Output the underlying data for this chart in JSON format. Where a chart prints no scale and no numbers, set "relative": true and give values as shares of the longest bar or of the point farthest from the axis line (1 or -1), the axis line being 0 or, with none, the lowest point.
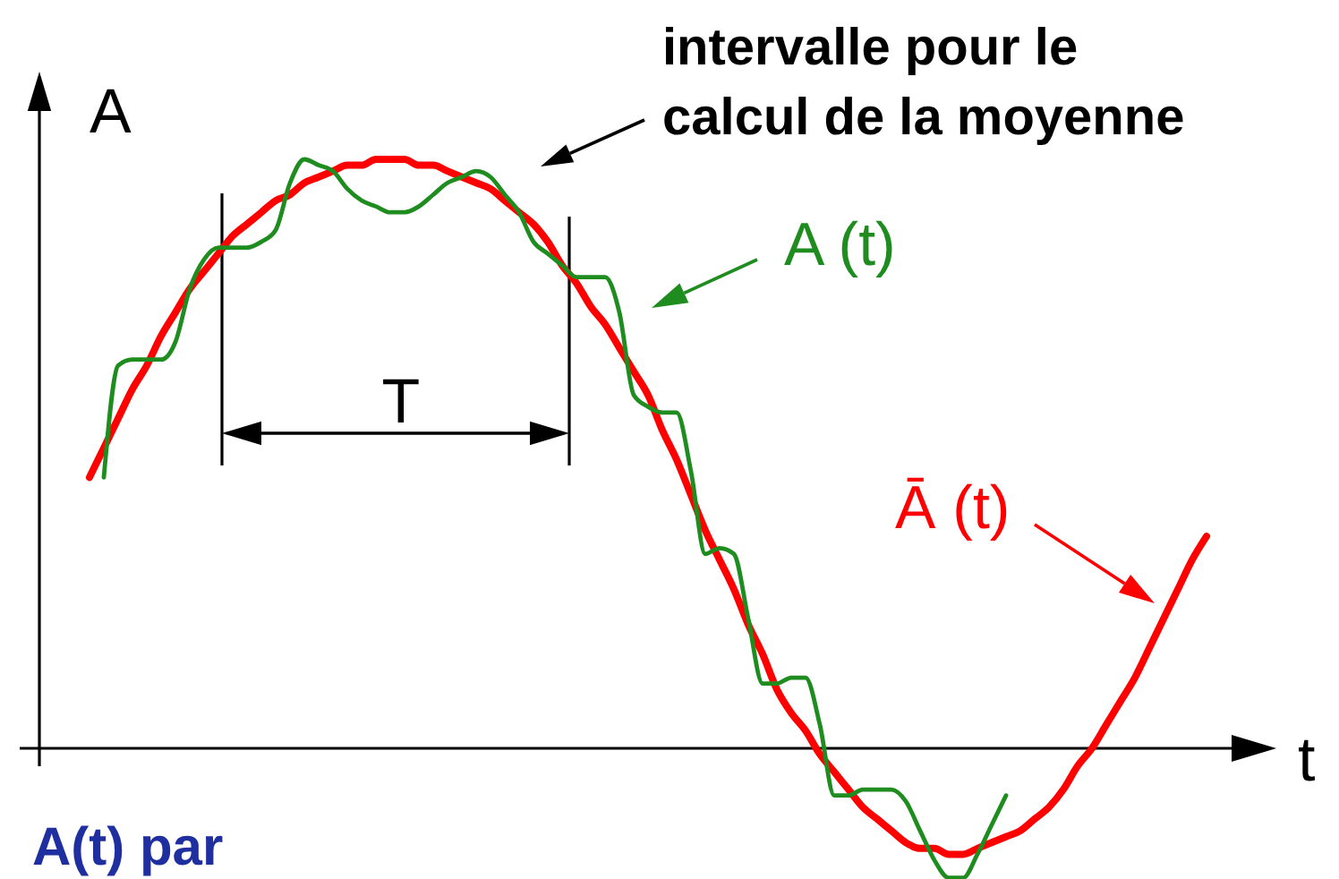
{
  "chart_data": {
    "type": "line",
    "relative": true,
    "xlabel": "t",
    "ylabel": "A",
    "categories": [
      null,
      null,
      null,
      null,
      null,
      null,
      null,
      null,
      null,
      null,
      null,
      null,
      null,
      null,
      null,
      null,
      null,
      null,
      null,
      null,
      null,
      null,
      null,
      null,
      null,
      null,
      null,
      null,
      null,
      null,
      null,
      null,
      null,
      null,
      null,
      null,
      null,
      null,
      null,
      null,
      null,
      null,
      null,
      null,
      null,
      null,
      null,
      null,
      null,
      null,
      null,
      null,
      null,
      null,
      null,
      null,
      null,
      null,
      null,
      null,
      null,
      null,
      null,
      null,
      null,
      null,
      null,
      null,
      null,
      null,
      null,
      null,
      null,
      null,
      null,
      null,
      null,
      null,
      null
    ],
    "series": [
      {
        "name": "Ā (t)",
        "color": "#ff0000",
        "values": [
          0.46,
          0.51,
          0.56,
          0.61,
          0.65,
          0.7,
          0.74,
          0.78,
          0.81,
          0.84,
          0.87,
          0.89,
          0.91,
          0.93,
          0.94,
          0.96,
          0.97,
          0.98,
          0.99,
          0.99,
          1.0,
          1.0,
          1.0,
          0.99,
          0.99,
          0.98,
          0.97,
          0.96,
          0.95,
          0.93,
          0.91,
          0.89,
          0.86,
          0.82,
          0.79,
          0.75,
          0.72,
          0.68,
          0.64,
          0.6,
          0.54,
          0.49,
          0.43,
          0.37,
          0.32,
          0.27,
          0.21,
          0.16,
          0.1,
          0.06,
          0.03,
          -0.01,
          -0.04,
          -0.07,
          -0.1,
          -0.12,
          -0.14,
          -0.16,
          -0.17,
          -0.17,
          -0.18,
          -0.18,
          -0.17,
          -0.16,
          -0.15,
          -0.14,
          -0.12,
          -0.1,
          -0.07,
          -0.03,
          0,
          0.04,
          0.08,
          0.12,
          0.17,
          0.22,
          0.27,
          0.32,
          0.36
        ]
      },
      {
        "name": "A (t)",
        "color": "#1e8c1e",
        "values": [
          null,
          0.46,
          0.65,
          0.66,
          0.66,
          0.66,
          0.69,
          0.78,
          0.83,
          0.85,
          0.85,
          0.85,
          0.86,
          0.88,
          0.96,
          1.0,
          0.99,
          0.98,
          0.95,
          0.93,
          0.92,
          0.91,
          0.91,
          0.92,
          0.94,
          0.96,
          0.97,
          0.98,
          0.97,
          0.94,
          0.91,
          0.86,
          0.84,
          0.82,
          0.8,
          0.8,
          0.8,
          0.74,
          0.6,
          0.58,
          0.57,
          0.57,
          0.47,
          0.33,
          0.34,
          0.33,
          0.22,
          0.11,
          0.11,
          0.12,
          0.12,
          0.04,
          -0.08,
          -0.08,
          -0.07,
          -0.07,
          -0.07,
          -0.09,
          -0.14,
          -0.19,
          -0.22,
          -0.22,
          -0.18,
          -0.13,
          -0.08,
          null,
          null,
          null,
          null,
          null,
          null,
          null,
          null,
          null,
          null,
          null,
          null,
          null,
          null
        ]
      }
    ],
    "annotations": [
      "intervalle pour le\ncalcul de la moyenne",
      "T",
      "A(t) par"
    ]
  }
}
